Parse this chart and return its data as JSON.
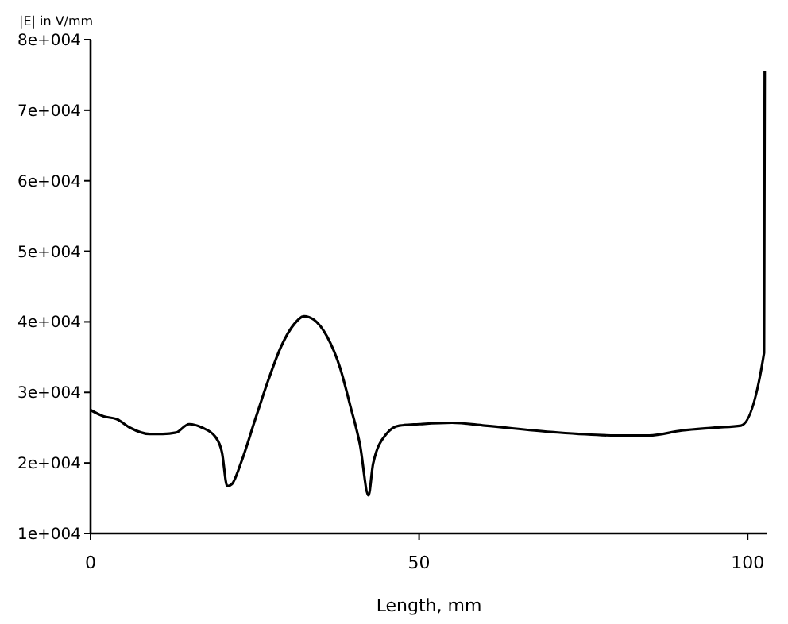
{
  "chart_data": {
    "type": "line",
    "xlabel": "Length, mm",
    "ylabel": "|E| in V/mm",
    "xlim": [
      0,
      103
    ],
    "xticks": [
      0,
      50,
      100
    ],
    "ylim": [
      10000,
      80000
    ],
    "yticks": [
      {
        "value": 10000,
        "label": "1e+004"
      },
      {
        "value": 20000,
        "label": "2e+004"
      },
      {
        "value": 30000,
        "label": "3e+004"
      },
      {
        "value": 40000,
        "label": "4e+004"
      },
      {
        "value": 50000,
        "label": "5e+004"
      },
      {
        "value": 60000,
        "label": "6e+004"
      },
      {
        "value": 70000,
        "label": "7e+004"
      },
      {
        "value": 80000,
        "label": "8e+004"
      }
    ],
    "grid": false,
    "marker": "none",
    "line_style": "solid",
    "series": [
      {
        "color": "#000000",
        "x": [
          0,
          2,
          4,
          6,
          9,
          11,
          13,
          15,
          17,
          19,
          20,
          20.8,
          21.5,
          23,
          25,
          27,
          29,
          31,
          32.5,
          34,
          36,
          38,
          39.5,
          41,
          42.3,
          43,
          45,
          47,
          50,
          55,
          60,
          70,
          80,
          85,
          90,
          95,
          99,
          102.5,
          102.6
        ],
        "values": [
          27500,
          26600,
          26200,
          25000,
          24100,
          24100,
          24300,
          25500,
          25000,
          23700,
          21500,
          16700,
          17000,
          20300,
          26000,
          31600,
          36500,
          39700,
          40800,
          40300,
          37900,
          33400,
          28200,
          22600,
          15400,
          19900,
          24100,
          25300,
          25500,
          25700,
          25300,
          24400,
          23900,
          23900,
          24600,
          25000,
          25300,
          35600,
          75500
        ]
      }
    ]
  }
}
